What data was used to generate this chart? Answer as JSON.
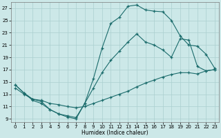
{
  "xlabel": "Humidex (Indice chaleur)",
  "background_color": "#cce8e8",
  "grid_color": "#aacfcf",
  "line_color": "#1a6b6b",
  "xlim": [
    -0.5,
    23.5
  ],
  "ylim": [
    8.5,
    28
  ],
  "yticks": [
    9,
    11,
    13,
    15,
    17,
    19,
    21,
    23,
    25,
    27
  ],
  "xticks": [
    0,
    1,
    2,
    3,
    4,
    5,
    6,
    7,
    8,
    9,
    10,
    11,
    12,
    13,
    14,
    15,
    16,
    17,
    18,
    19,
    20,
    21,
    22,
    23
  ],
  "line1_x": [
    0,
    1,
    2,
    3,
    4,
    5,
    6,
    7,
    8,
    9,
    10,
    11,
    12,
    13,
    14,
    15,
    16,
    17,
    18,
    19,
    20,
    21,
    22,
    23
  ],
  "line1_y": [
    14.5,
    13.2,
    12.0,
    11.5,
    10.5,
    9.8,
    9.3,
    9.0,
    11.5,
    15.5,
    20.5,
    24.5,
    25.5,
    27.3,
    27.5,
    26.7,
    26.5,
    26.4,
    25.0,
    22.5,
    21.0,
    20.8,
    19.5,
    17.2
  ],
  "line2_x": [
    0,
    1,
    2,
    3,
    4,
    5,
    6,
    7,
    8,
    9,
    10,
    11,
    12,
    13,
    14,
    15,
    16,
    17,
    18,
    19,
    20,
    21,
    22,
    23
  ],
  "line2_y": [
    14.0,
    13.0,
    12.2,
    12.0,
    11.5,
    11.3,
    11.0,
    10.8,
    11.0,
    11.5,
    12.0,
    12.5,
    13.0,
    13.5,
    14.2,
    14.8,
    15.3,
    15.8,
    16.2,
    16.5,
    16.5,
    16.3,
    16.8,
    17.0
  ],
  "line3_x": [
    0,
    1,
    2,
    3,
    4,
    5,
    6,
    7,
    8,
    9,
    10,
    11,
    12,
    13,
    14,
    15,
    16,
    17,
    18,
    19,
    20,
    21,
    22,
    23
  ],
  "line3_y": [
    14.5,
    13.2,
    12.2,
    11.8,
    10.5,
    9.8,
    9.5,
    9.2,
    11.5,
    14.0,
    16.5,
    18.5,
    20.0,
    21.5,
    22.8,
    21.5,
    21.0,
    20.2,
    19.0,
    22.0,
    21.8,
    17.5,
    16.8,
    17.0
  ]
}
